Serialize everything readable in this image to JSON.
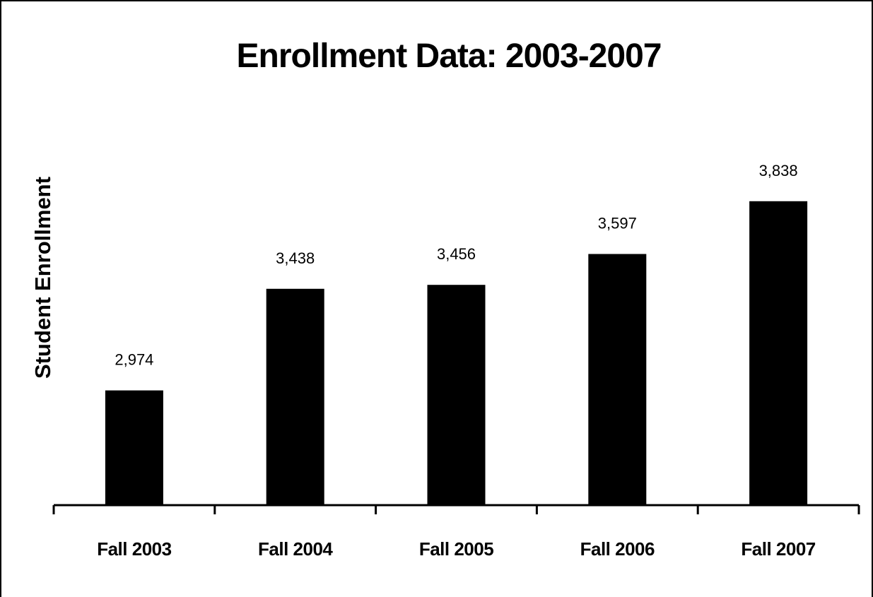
{
  "chart_data": {
    "type": "bar",
    "title": "Enrollment Data: 2003-2007",
    "xlabel": "",
    "ylabel": "Student Enrollment",
    "categories": [
      "Fall 2003",
      "Fall 2004",
      "Fall 2005",
      "Fall 2006",
      "Fall 2007"
    ],
    "values": [
      2974,
      3438,
      3456,
      3597,
      3838
    ],
    "data_labels": [
      "2,974",
      "3,438",
      "3,456",
      "3,597",
      "3,838"
    ],
    "ylim": [
      2450,
      4160
    ],
    "grid": false,
    "legend": "none",
    "bar_color": "#000000"
  }
}
